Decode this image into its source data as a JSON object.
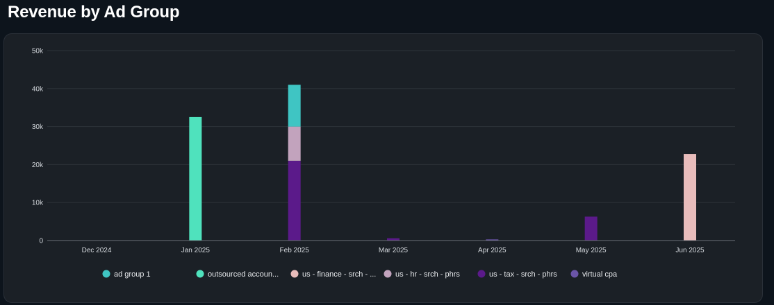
{
  "page": {
    "title": "Revenue by Ad Group"
  },
  "colors": {
    "background": "#0d141c",
    "card": "#1b2026",
    "grid": "#2d3339",
    "axis": "#6b7178"
  },
  "chart_data": {
    "type": "bar",
    "stacked": true,
    "title": "Revenue by Ad Group",
    "xlabel": "",
    "ylabel": "",
    "ylim": [
      0,
      50000
    ],
    "yticks": [
      0,
      10000,
      20000,
      30000,
      40000,
      50000
    ],
    "ytick_labels": [
      "0",
      "10k",
      "20k",
      "30k",
      "40k",
      "50k"
    ],
    "grid": true,
    "legend_position": "bottom",
    "categories": [
      "Dec 2024",
      "Jan 2025",
      "Feb 2025",
      "Mar 2025",
      "Apr 2025",
      "May 2025",
      "Jun 2025"
    ],
    "series": [
      {
        "name": "us - tax - srch - phrs",
        "color": "#5b1a8a",
        "values": [
          0,
          0,
          21000,
          600,
          0,
          6300,
          0
        ]
      },
      {
        "name": "us - hr - srch - phrs",
        "color": "#c2a3bd",
        "values": [
          0,
          0,
          9000,
          0,
          0,
          0,
          0
        ]
      },
      {
        "name": "ad group 1",
        "color": "#3fc5c3",
        "values": [
          0,
          0,
          11000,
          0,
          0,
          0,
          0
        ]
      },
      {
        "name": "outsourced accoun...",
        "color": "#4fe2bd",
        "values": [
          0,
          32500,
          0,
          0,
          0,
          0,
          0
        ]
      },
      {
        "name": "us - finance - srch - ...",
        "color": "#e8bcbb",
        "values": [
          0,
          0,
          0,
          0,
          0,
          0,
          22800
        ]
      },
      {
        "name": "virtual cpa",
        "color": "#6b55a8",
        "values": [
          0,
          0,
          0,
          0,
          300,
          0,
          0
        ]
      }
    ],
    "legend": [
      {
        "name": "ad group 1",
        "color": "#3fc5c3"
      },
      {
        "name": "outsourced accoun...",
        "color": "#4fe2bd"
      },
      {
        "name": "us - finance - srch - ...",
        "color": "#e8bcbb"
      },
      {
        "name": "us - hr - srch - phrs",
        "color": "#c2a3bd"
      },
      {
        "name": "us - tax - srch - phrs",
        "color": "#5b1a8a"
      },
      {
        "name": "virtual cpa",
        "color": "#6b55a8"
      }
    ]
  }
}
